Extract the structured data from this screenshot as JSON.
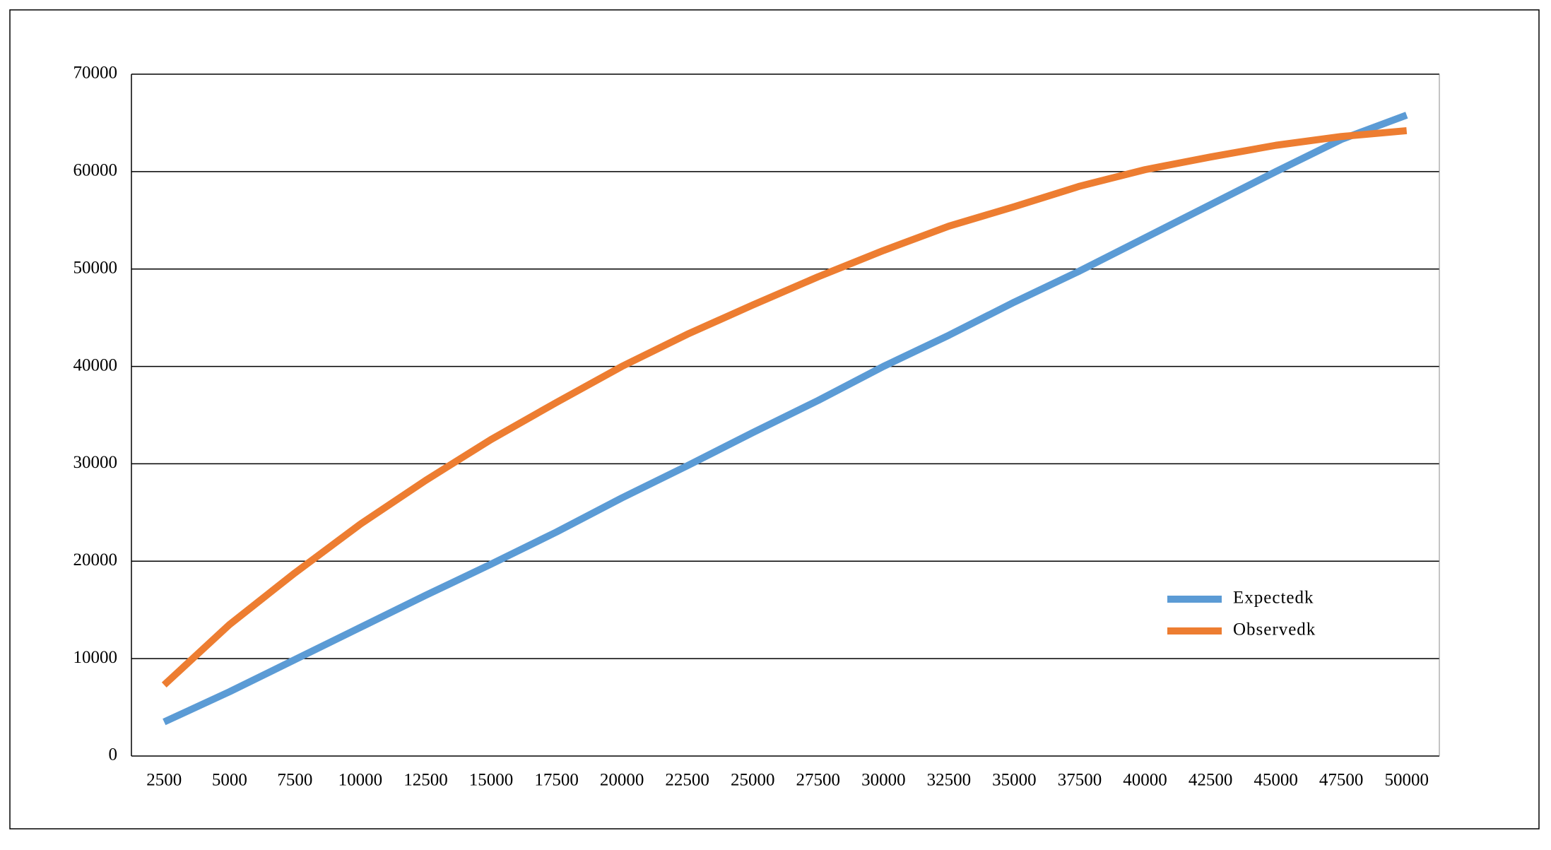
{
  "chart_data": {
    "type": "line",
    "categories": [
      2500,
      5000,
      7500,
      10000,
      12500,
      15000,
      17500,
      20000,
      22500,
      25000,
      27500,
      30000,
      32500,
      35000,
      37500,
      40000,
      42500,
      45000,
      47500,
      50000
    ],
    "series": [
      {
        "name": "Expectedk",
        "color": "#5b9bd5",
        "values": [
          3500,
          6600,
          9900,
          13200,
          16500,
          19700,
          23000,
          26500,
          29800,
          33200,
          36500,
          40000,
          43200,
          46600,
          49800,
          53200,
          56600,
          60000,
          63300,
          65800
        ]
      },
      {
        "name": "Observedk",
        "color": "#ed7d31",
        "values": [
          7300,
          13500,
          18800,
          23800,
          28300,
          32500,
          36300,
          40000,
          43300,
          46300,
          49200,
          51900,
          54400,
          56400,
          58500,
          60200,
          61500,
          62700,
          63600,
          64200
        ]
      }
    ],
    "ylim": [
      0,
      70000
    ],
    "yticks": [
      0,
      10000,
      20000,
      30000,
      40000,
      50000,
      60000,
      70000
    ],
    "grid": true,
    "legend": "lower right"
  }
}
